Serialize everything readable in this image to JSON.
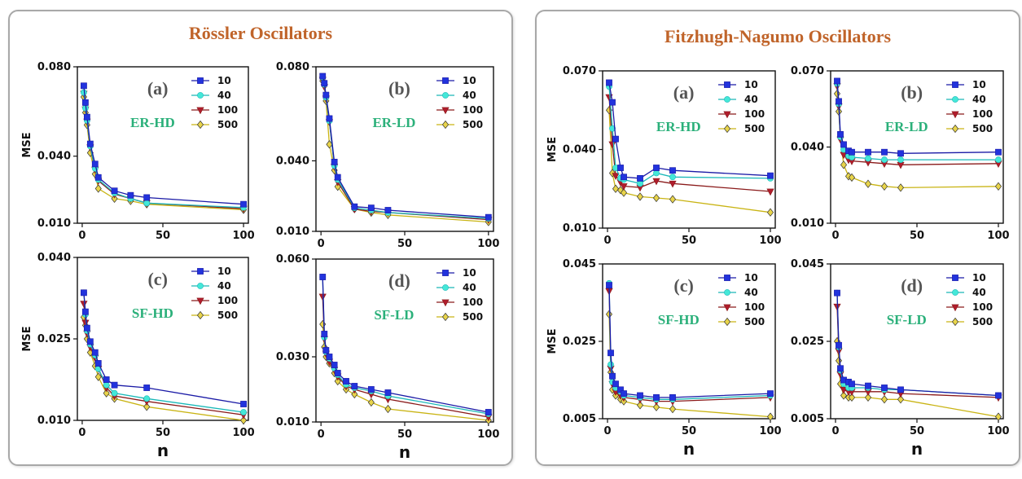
{
  "titles": {
    "left": "Rössler Oscillators",
    "right": "Fitzhugh-Nagumo Oscillators"
  },
  "colors": {
    "s10": "#1a1aa6",
    "s40": "#1ab8b8",
    "s100": "#8a1a1a",
    "s500": "#c9b414",
    "marker10": "#2233dd",
    "marker40": "#44e8d8",
    "marker100": "#b01c2c",
    "marker500": "#e8d44a",
    "title": "#c0642a",
    "net": "#2bb07a"
  },
  "chart_data": [
    {
      "id": "ra",
      "type": "line",
      "group": "Rössler Oscillators",
      "label": "(a)",
      "network": "ER-HD",
      "ylabel": "MSE",
      "xlabel": "",
      "xlim": [
        -3,
        103
      ],
      "ylim": [
        0.01,
        0.08
      ],
      "yticks": [
        "0.080",
        "0.040",
        "0.010"
      ],
      "ytick_values": [
        0.08,
        0.04,
        0.01
      ],
      "xticks": [
        "0",
        "50",
        "100"
      ],
      "xtick_values": [
        0,
        50,
        100
      ],
      "legend": [
        "10",
        "40",
        "100",
        "500"
      ],
      "x": [
        1,
        2,
        3,
        5,
        8,
        10,
        20,
        30,
        40,
        100
      ],
      "series": [
        {
          "name": "10",
          "values": [
            0.0715,
            0.064,
            0.0575,
            0.0455,
            0.0365,
            0.0305,
            0.0245,
            0.0225,
            0.0215,
            0.0185
          ]
        },
        {
          "name": "40",
          "values": [
            0.0685,
            0.0615,
            0.056,
            0.0445,
            0.0345,
            0.0295,
            0.0235,
            0.021,
            0.019,
            0.017
          ]
        },
        {
          "name": "100",
          "values": [
            0.068,
            0.061,
            0.0555,
            0.044,
            0.034,
            0.029,
            0.023,
            0.021,
            0.019,
            0.0165
          ]
        },
        {
          "name": "500",
          "values": [
            0.0665,
            0.0595,
            0.054,
            0.0415,
            0.032,
            0.0255,
            0.021,
            0.02,
            0.0185,
            0.016
          ]
        }
      ]
    },
    {
      "id": "rb",
      "type": "line",
      "group": "Rössler Oscillators",
      "label": "(b)",
      "network": "ER-LD",
      "ylabel": "",
      "xlabel": "",
      "xlim": [
        -3,
        103
      ],
      "ylim": [
        0.01,
        0.08
      ],
      "yticks": [
        "0.080",
        "0.040",
        "0.010"
      ],
      "ytick_values": [
        0.08,
        0.04,
        0.01
      ],
      "xticks": [
        "0",
        "50",
        "100"
      ],
      "xtick_values": [
        0,
        50,
        100
      ],
      "legend": [
        "10",
        "40",
        "100",
        "500"
      ],
      "x": [
        1,
        2,
        3,
        5,
        8,
        10,
        20,
        30,
        40,
        100
      ],
      "series": [
        {
          "name": "10",
          "values": [
            0.076,
            0.073,
            0.068,
            0.058,
            0.0395,
            0.033,
            0.0205,
            0.02,
            0.019,
            0.016
          ]
        },
        {
          "name": "40",
          "values": [
            0.0755,
            0.0725,
            0.067,
            0.057,
            0.038,
            0.032,
            0.02,
            0.019,
            0.018,
            0.0155
          ]
        },
        {
          "name": "100",
          "values": [
            0.0745,
            0.0715,
            0.0665,
            0.0565,
            0.0375,
            0.031,
            0.0195,
            0.0185,
            0.018,
            0.015
          ]
        },
        {
          "name": "500",
          "values": [
            0.074,
            0.072,
            0.0655,
            0.047,
            0.036,
            0.029,
            0.0195,
            0.018,
            0.017,
            0.014
          ]
        }
      ]
    },
    {
      "id": "rc",
      "type": "line",
      "group": "Rössler Oscillators",
      "label": "(c)",
      "network": "SF-HD",
      "ylabel": "MSE",
      "xlabel": "n",
      "xlim": [
        -3,
        103
      ],
      "ylim": [
        0.01,
        0.04
      ],
      "yticks": [
        "0.040",
        "0.025",
        "0.010"
      ],
      "ytick_values": [
        0.04,
        0.025,
        0.01
      ],
      "xticks": [
        "0",
        "50",
        "100"
      ],
      "xtick_values": [
        0,
        50,
        100
      ],
      "legend": [
        "10",
        "40",
        "100",
        "500"
      ],
      "x": [
        1,
        2,
        3,
        5,
        8,
        10,
        15,
        20,
        40,
        100
      ],
      "series": [
        {
          "name": "10",
          "values": [
            0.0335,
            0.03,
            0.027,
            0.0245,
            0.0225,
            0.0205,
            0.0175,
            0.0165,
            0.016,
            0.013
          ]
        },
        {
          "name": "40",
          "values": [
            0.0335,
            0.0295,
            0.0265,
            0.024,
            0.022,
            0.0195,
            0.0165,
            0.015,
            0.014,
            0.0115
          ]
        },
        {
          "name": "100",
          "values": [
            0.0315,
            0.028,
            0.026,
            0.0235,
            0.0215,
            0.0195,
            0.016,
            0.0145,
            0.0135,
            0.011
          ]
        },
        {
          "name": "500",
          "values": [
            0.029,
            0.0275,
            0.025,
            0.0225,
            0.02,
            0.018,
            0.015,
            0.014,
            0.0125,
            0.01
          ]
        }
      ]
    },
    {
      "id": "rd",
      "type": "line",
      "group": "Rössler Oscillators",
      "label": "(d)",
      "network": "SF-LD",
      "ylabel": "",
      "xlabel": "n",
      "xlim": [
        -3,
        103
      ],
      "ylim": [
        0.01,
        0.06
      ],
      "yticks": [
        "0.060",
        "0.030",
        "0.010"
      ],
      "ytick_values": [
        0.06,
        0.03,
        0.01
      ],
      "xticks": [
        "0",
        "50",
        "100"
      ],
      "xtick_values": [
        0,
        50,
        100
      ],
      "legend": [
        "10",
        "40",
        "100",
        "500"
      ],
      "x": [
        1,
        2,
        3,
        5,
        8,
        10,
        15,
        20,
        30,
        40,
        100
      ],
      "series": [
        {
          "name": "10",
          "values": [
            0.0545,
            0.037,
            0.032,
            0.03,
            0.0275,
            0.025,
            0.0225,
            0.021,
            0.02,
            0.019,
            0.013
          ]
        },
        {
          "name": "40",
          "values": [
            0.0545,
            0.036,
            0.0315,
            0.0295,
            0.0265,
            0.0245,
            0.0215,
            0.0205,
            0.0195,
            0.018,
            0.0125
          ]
        },
        {
          "name": "100",
          "values": [
            0.0485,
            0.0355,
            0.031,
            0.0285,
            0.026,
            0.024,
            0.021,
            0.02,
            0.0185,
            0.017,
            0.0115
          ]
        },
        {
          "name": "500",
          "values": [
            0.04,
            0.033,
            0.03,
            0.028,
            0.025,
            0.0225,
            0.02,
            0.0185,
            0.016,
            0.014,
            0.0105
          ]
        }
      ]
    },
    {
      "id": "fa",
      "type": "line",
      "group": "Fitzhugh-Nagumo Oscillators",
      "label": "(a)",
      "network": "ER-HD",
      "ylabel": "MSE",
      "xlabel": "",
      "xlim": [
        -3,
        103
      ],
      "ylim": [
        0.01,
        0.07
      ],
      "yticks": [
        "0.070",
        "0.040",
        "0.010"
      ],
      "ytick_values": [
        0.07,
        0.04,
        0.01
      ],
      "xticks": [
        "0",
        "50",
        "100"
      ],
      "xtick_values": [
        0,
        50,
        100
      ],
      "legend": [
        "10",
        "40",
        "100",
        "500"
      ],
      "x": [
        1,
        3,
        5,
        8,
        10,
        20,
        30,
        40,
        100
      ],
      "series": [
        {
          "name": "10",
          "values": [
            0.0655,
            0.058,
            0.044,
            0.033,
            0.0295,
            0.029,
            0.033,
            0.032,
            0.03
          ]
        },
        {
          "name": "40",
          "values": [
            0.064,
            0.048,
            0.033,
            0.029,
            0.0285,
            0.027,
            0.031,
            0.0295,
            0.029
          ]
        },
        {
          "name": "100",
          "values": [
            0.06,
            0.042,
            0.03,
            0.0275,
            0.026,
            0.0255,
            0.028,
            0.027,
            0.024
          ]
        },
        {
          "name": "500",
          "values": [
            0.055,
            0.031,
            0.025,
            0.0245,
            0.0235,
            0.022,
            0.0215,
            0.021,
            0.016
          ]
        }
      ]
    },
    {
      "id": "fb",
      "type": "line",
      "group": "Fitzhugh-Nagumo Oscillators",
      "label": "(b)",
      "network": "ER-LD",
      "ylabel": "",
      "xlabel": "",
      "xlim": [
        -3,
        103
      ],
      "ylim": [
        0.01,
        0.07
      ],
      "yticks": [
        "0.070",
        "0.040",
        "0.010"
      ],
      "ytick_values": [
        0.07,
        0.04,
        0.01
      ],
      "xticks": [
        "0",
        "50",
        "100"
      ],
      "xtick_values": [
        0,
        50,
        100
      ],
      "legend": [
        "10",
        "40",
        "100",
        "500"
      ],
      "x": [
        1,
        2,
        3,
        5,
        8,
        10,
        20,
        30,
        40,
        100
      ],
      "series": [
        {
          "name": "10",
          "values": [
            0.066,
            0.058,
            0.045,
            0.041,
            0.0385,
            0.038,
            0.038,
            0.038,
            0.0375,
            0.038
          ]
        },
        {
          "name": "40",
          "values": [
            0.065,
            0.057,
            0.044,
            0.039,
            0.0365,
            0.036,
            0.0355,
            0.035,
            0.035,
            0.035
          ]
        },
        {
          "name": "100",
          "values": [
            0.064,
            0.056,
            0.043,
            0.037,
            0.035,
            0.0345,
            0.034,
            0.0335,
            0.033,
            0.0335
          ]
        },
        {
          "name": "500",
          "values": [
            0.061,
            0.054,
            0.044,
            0.033,
            0.0285,
            0.028,
            0.0255,
            0.0245,
            0.024,
            0.0245
          ]
        }
      ]
    },
    {
      "id": "fc",
      "type": "line",
      "group": "Fitzhugh-Nagumo Oscillators",
      "label": "(c)",
      "network": "SF-HD",
      "ylabel": "MSE",
      "xlabel": "n",
      "xlim": [
        -3,
        103
      ],
      "ylim": [
        0.005,
        0.045
      ],
      "yticks": [
        "0.045",
        "0.025",
        "0.005"
      ],
      "ytick_values": [
        0.045,
        0.025,
        0.005
      ],
      "xticks": [
        "0",
        "50",
        "100"
      ],
      "xtick_values": [
        0,
        50,
        100
      ],
      "legend": [
        "10",
        "40",
        "100",
        "500"
      ],
      "x": [
        1,
        2,
        3,
        5,
        8,
        10,
        20,
        30,
        40,
        100
      ],
      "series": [
        {
          "name": "10",
          "values": [
            0.0395,
            0.022,
            0.016,
            0.014,
            0.0125,
            0.0115,
            0.011,
            0.0105,
            0.0105,
            0.0115
          ]
        },
        {
          "name": "40",
          "values": [
            0.04,
            0.019,
            0.0145,
            0.013,
            0.012,
            0.011,
            0.0105,
            0.01,
            0.01,
            0.011
          ]
        },
        {
          "name": "100",
          "values": [
            0.038,
            0.018,
            0.014,
            0.012,
            0.011,
            0.0105,
            0.01,
            0.0095,
            0.0095,
            0.0105
          ]
        },
        {
          "name": "500",
          "values": [
            0.032,
            0.017,
            0.0125,
            0.011,
            0.01,
            0.0095,
            0.0085,
            0.008,
            0.0075,
            0.0055
          ]
        }
      ]
    },
    {
      "id": "fd",
      "type": "line",
      "group": "Fitzhugh-Nagumo Oscillators",
      "label": "(d)",
      "network": "SF-LD",
      "ylabel": "",
      "xlabel": "n",
      "xlim": [
        -3,
        103
      ],
      "ylim": [
        0.005,
        0.045
      ],
      "yticks": [
        "0.045",
        "0.025",
        "0.005"
      ],
      "ytick_values": [
        0.045,
        0.025,
        0.005
      ],
      "xticks": [
        "0",
        "50",
        "100"
      ],
      "xtick_values": [
        0,
        50,
        100
      ],
      "legend": [
        "10",
        "40",
        "100",
        "500"
      ],
      "x": [
        1,
        2,
        3,
        5,
        8,
        10,
        20,
        30,
        40,
        100
      ],
      "series": [
        {
          "name": "10",
          "values": [
            0.0375,
            0.024,
            0.018,
            0.015,
            0.0145,
            0.014,
            0.0135,
            0.013,
            0.0125,
            0.011
          ]
        },
        {
          "name": "40",
          "values": [
            0.0375,
            0.0235,
            0.0175,
            0.014,
            0.013,
            0.013,
            0.013,
            0.0125,
            0.0125,
            0.011
          ]
        },
        {
          "name": "100",
          "values": [
            0.034,
            0.0225,
            0.0165,
            0.0125,
            0.012,
            0.012,
            0.012,
            0.012,
            0.0115,
            0.0105
          ]
        },
        {
          "name": "500",
          "values": [
            0.025,
            0.02,
            0.014,
            0.011,
            0.0105,
            0.0105,
            0.0105,
            0.01,
            0.01,
            0.0055
          ]
        }
      ]
    }
  ]
}
